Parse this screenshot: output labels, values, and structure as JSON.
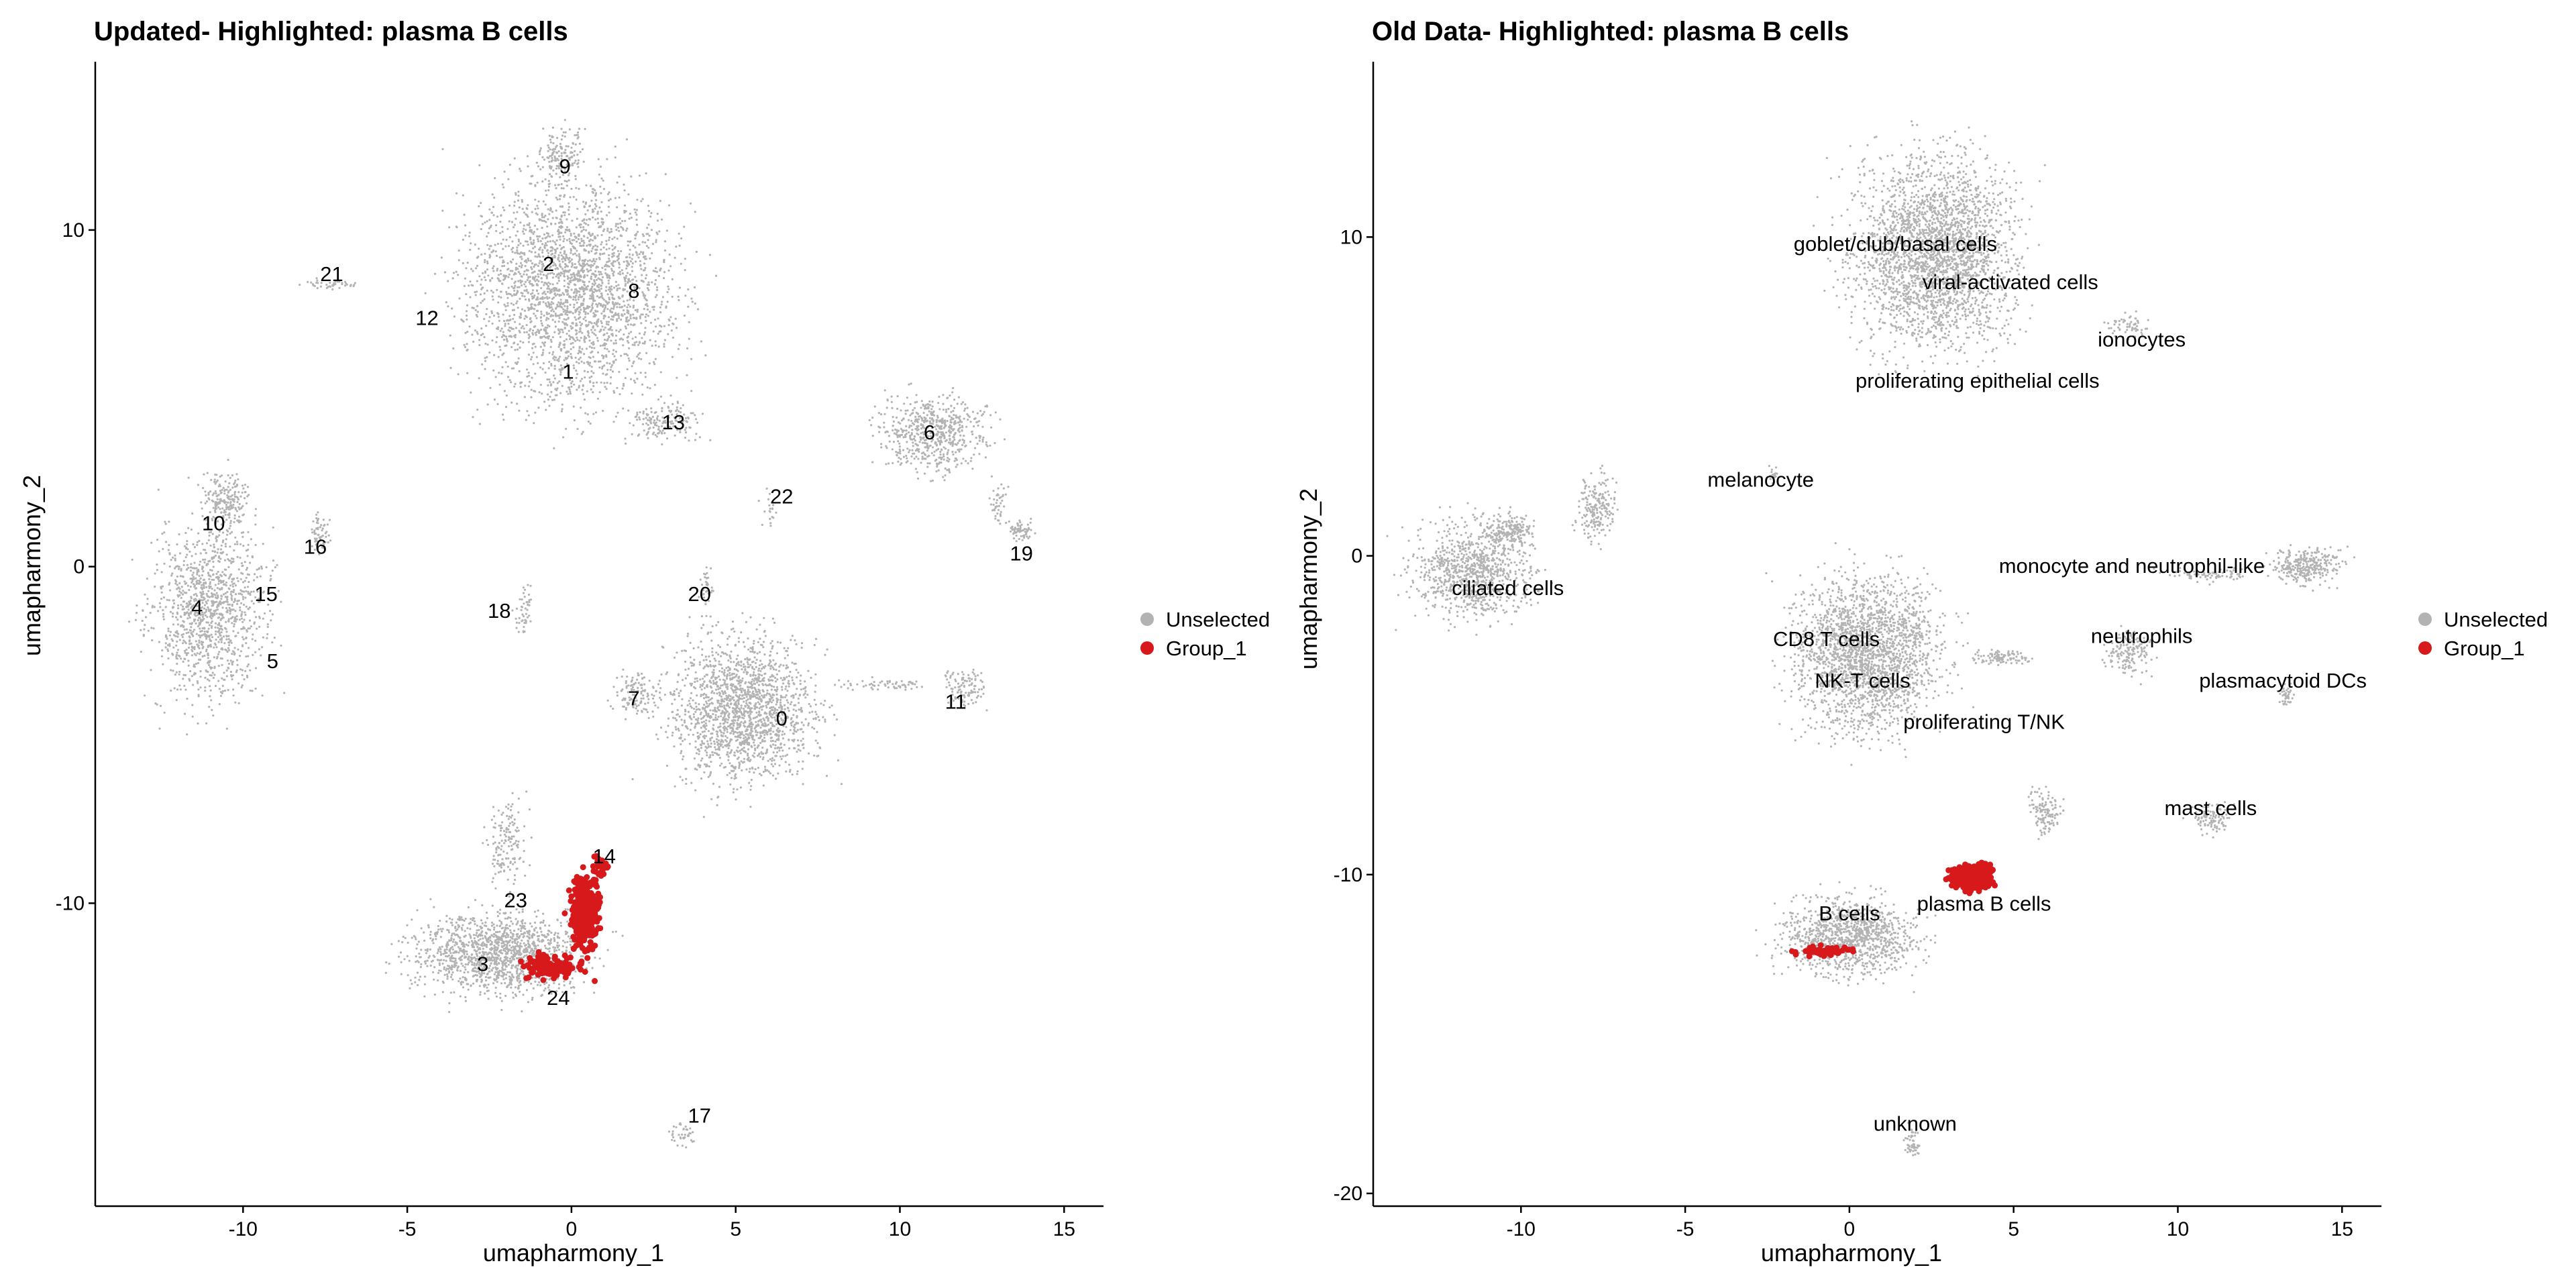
{
  "colors": {
    "unselected": "#b3b3b3",
    "group_1": "#d7191c",
    "text": "#000000",
    "background": "#ffffff"
  },
  "chart_data": [
    {
      "type": "scatter",
      "title": "Updated- Highlighted: plasma B cells",
      "xlabel": "umapharmony_1",
      "ylabel": "umapharmony_2",
      "xlim": [
        -14.5,
        16.2
      ],
      "ylim": [
        -19,
        15
      ],
      "xticks": [
        -10,
        -5,
        0,
        5,
        10,
        15
      ],
      "yticks": [
        -10,
        0,
        10
      ],
      "grid": false,
      "legend": {
        "placement": "right",
        "entries": [
          {
            "name": "Unselected",
            "color": "#b3b3b3"
          },
          {
            "name": "Group_1",
            "color": "#d7191c"
          }
        ]
      },
      "annotations": [
        {
          "text": "0",
          "x": 6.4,
          "y": -4.5
        },
        {
          "text": "1",
          "x": -0.1,
          "y": 5.8
        },
        {
          "text": "2",
          "x": -0.7,
          "y": 9.0
        },
        {
          "text": "3",
          "x": -2.7,
          "y": -11.8
        },
        {
          "text": "4",
          "x": -11.4,
          "y": -1.2
        },
        {
          "text": "5",
          "x": -9.1,
          "y": -2.8
        },
        {
          "text": "6",
          "x": 10.9,
          "y": 4.0
        },
        {
          "text": "7",
          "x": 1.9,
          "y": -3.9
        },
        {
          "text": "8",
          "x": 1.9,
          "y": 8.2
        },
        {
          "text": "9",
          "x": -0.2,
          "y": 11.9
        },
        {
          "text": "10",
          "x": -10.9,
          "y": 1.3
        },
        {
          "text": "11",
          "x": 11.7,
          "y": -4.0
        },
        {
          "text": "12",
          "x": -4.4,
          "y": 7.4
        },
        {
          "text": "13",
          "x": 3.1,
          "y": 4.3
        },
        {
          "text": "14",
          "x": 1.0,
          "y": -8.6
        },
        {
          "text": "15",
          "x": -9.3,
          "y": -0.8
        },
        {
          "text": "16",
          "x": -7.8,
          "y": 0.6
        },
        {
          "text": "17",
          "x": 3.9,
          "y": -16.3
        },
        {
          "text": "18",
          "x": -2.2,
          "y": -1.3
        },
        {
          "text": "19",
          "x": 13.7,
          "y": 0.4
        },
        {
          "text": "20",
          "x": 3.9,
          "y": -0.8
        },
        {
          "text": "21",
          "x": -7.3,
          "y": 8.7
        },
        {
          "text": "22",
          "x": 6.4,
          "y": 2.1
        },
        {
          "text": "23",
          "x": -1.7,
          "y": -9.9
        },
        {
          "text": "24",
          "x": -0.4,
          "y": -12.8
        }
      ]
    },
    {
      "type": "scatter",
      "title": "Old Data- Highlighted: plasma B cells",
      "xlabel": "umapharmony_1",
      "ylabel": "umapharmony_2",
      "xlim": [
        -14.5,
        16.2
      ],
      "ylim": [
        -20.4,
        15.5
      ],
      "xticks": [
        -10,
        -5,
        0,
        5,
        10,
        15
      ],
      "yticks": [
        -20,
        -10,
        0,
        10
      ],
      "grid": false,
      "legend": {
        "placement": "right",
        "entries": [
          {
            "name": "Unselected",
            "color": "#b3b3b3"
          },
          {
            "name": "Group_1",
            "color": "#d7191c"
          }
        ]
      },
      "annotations": [
        {
          "text": "goblet/club/basal cells",
          "x": 1.4,
          "y": 9.8
        },
        {
          "text": "viral-activated cells",
          "x": 4.9,
          "y": 8.6
        },
        {
          "text": "ionocytes",
          "x": 8.9,
          "y": 6.8
        },
        {
          "text": "proliferating epithelial cells",
          "x": 3.9,
          "y": 5.5
        },
        {
          "text": "melanocyte",
          "x": -2.7,
          "y": 2.4
        },
        {
          "text": "ciliated cells",
          "x": -10.4,
          "y": -1.0
        },
        {
          "text": "monocyte and neutrophil-like",
          "x": 8.6,
          "y": -0.3
        },
        {
          "text": "CD8 T cells",
          "x": -0.7,
          "y": -2.6
        },
        {
          "text": "neutrophils",
          "x": 8.9,
          "y": -2.5
        },
        {
          "text": "NK-T cells",
          "x": 0.4,
          "y": -3.9
        },
        {
          "text": "plasmacytoid DCs",
          "x": 13.2,
          "y": -3.9
        },
        {
          "text": "proliferating T/NK",
          "x": 4.1,
          "y": -5.2
        },
        {
          "text": "mast cells",
          "x": 11.0,
          "y": -7.9
        },
        {
          "text": "plasma B cells",
          "x": 4.1,
          "y": -10.9
        },
        {
          "text": "B cells",
          "x": 0.0,
          "y": -11.2
        },
        {
          "text": "unknown",
          "x": 2.0,
          "y": -17.8
        }
      ]
    }
  ]
}
